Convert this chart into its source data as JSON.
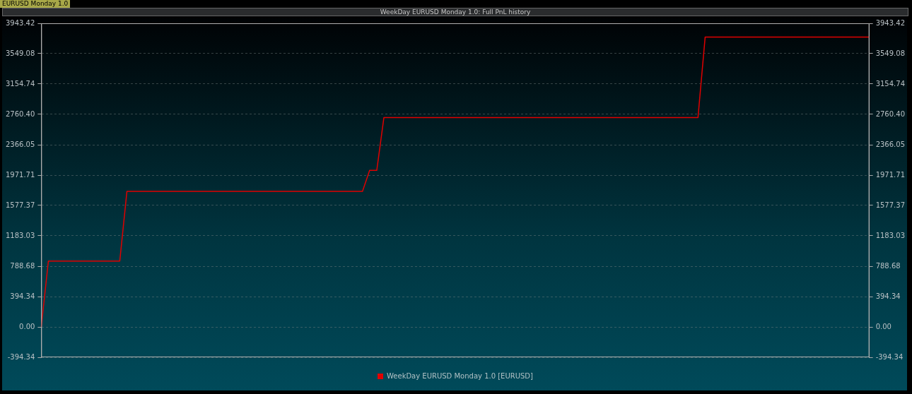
{
  "chart_data": {
    "type": "line",
    "title": "WeekDay EURUSD Monday 1.0: Full PnL history",
    "annotations": [
      "EURUSD Monday 1.0"
    ],
    "categories": [
      null,
      null,
      null,
      null,
      null,
      null,
      null,
      null,
      null,
      null,
      null,
      null,
      null,
      null,
      null,
      null,
      null,
      null,
      null,
      null,
      null,
      null,
      null,
      null,
      null,
      null,
      null,
      null,
      null,
      null,
      null,
      null,
      null,
      null,
      null,
      null,
      null,
      null,
      null,
      null,
      null,
      null,
      null,
      null,
      null,
      null,
      null,
      null,
      null,
      null,
      null,
      null,
      null,
      null,
      null,
      null,
      null,
      null,
      null,
      null,
      null,
      null,
      null,
      null,
      null,
      null,
      null,
      null,
      null,
      null,
      null,
      null,
      null,
      null,
      null,
      null,
      null,
      null,
      null,
      null,
      null,
      null,
      null,
      null,
      null,
      null,
      null,
      null,
      null,
      null,
      null,
      null,
      null,
      null,
      null,
      null,
      null,
      null,
      null,
      null,
      null,
      null,
      null,
      null,
      null,
      null,
      null,
      null,
      null,
      null,
      null,
      null,
      null,
      null,
      null,
      null,
      null
    ],
    "series": [
      {
        "name": "WeekDay EURUSD Monday 1.0 [EURUSD]",
        "color": "#e00000",
        "values": [
          0,
          856,
          856,
          856,
          856,
          856,
          856,
          856,
          856,
          856,
          856,
          856,
          1760,
          1760,
          1760,
          1760,
          1760,
          1760,
          1760,
          1760,
          1760,
          1760,
          1760,
          1760,
          1760,
          1760,
          1760,
          1760,
          1760,
          1760,
          1760,
          1760,
          1760,
          1760,
          1760,
          1760,
          1760,
          1760,
          1760,
          1760,
          1760,
          1760,
          1760,
          1760,
          1760,
          1760,
          2033,
          2033,
          2720,
          2720,
          2720,
          2720,
          2720,
          2720,
          2720,
          2720,
          2720,
          2720,
          2720,
          2720,
          2720,
          2720,
          2720,
          2720,
          2720,
          2720,
          2720,
          2720,
          2720,
          2720,
          2720,
          2720,
          2720,
          2720,
          2720,
          2720,
          2720,
          2720,
          2720,
          2720,
          2720,
          2720,
          2720,
          2720,
          2720,
          2720,
          2720,
          2720,
          2720,
          2720,
          2720,
          2720,
          2720,
          3764,
          3764,
          3764,
          3764,
          3764,
          3764,
          3764,
          3764,
          3764,
          3764,
          3764,
          3764,
          3764,
          3764,
          3764,
          3764,
          3764,
          3764,
          3764,
          3764,
          3764,
          3764,
          3764,
          3764
        ]
      }
    ],
    "ylim": [
      -394.34,
      3943.42
    ],
    "yticks": [
      {
        "value": -394.34,
        "label": "-394.34"
      },
      {
        "value": 0,
        "label": "0.00"
      },
      {
        "value": 394.34,
        "label": "394.34"
      },
      {
        "value": 788.68,
        "label": "788.68"
      },
      {
        "value": 1183.03,
        "label": "1183.03"
      },
      {
        "value": 1577.37,
        "label": "1577.37"
      },
      {
        "value": 1971.71,
        "label": "1971.71"
      },
      {
        "value": 2366.05,
        "label": "2366.05"
      },
      {
        "value": 2760.4,
        "label": "2760.40"
      },
      {
        "value": 3154.74,
        "label": "3154.74"
      },
      {
        "value": 3549.08,
        "label": "3549.08"
      },
      {
        "value": 3943.42,
        "label": "3943.42"
      }
    ],
    "y2lim": [
      -394.34,
      3943.42
    ],
    "y2ticks": [
      {
        "value": -394.34,
        "label": "-394.34"
      },
      {
        "value": 0,
        "label": "0.00"
      },
      {
        "value": 394.34,
        "label": "394.34"
      },
      {
        "value": 788.68,
        "label": "788.68"
      },
      {
        "value": 1183.03,
        "label": "1183.03"
      },
      {
        "value": 1577.37,
        "label": "1577.37"
      },
      {
        "value": 1971.71,
        "label": "1971.71"
      },
      {
        "value": 2366.05,
        "label": "2366.05"
      },
      {
        "value": 2760.4,
        "label": "2760.40"
      },
      {
        "value": 3154.74,
        "label": "3154.74"
      },
      {
        "value": 3549.08,
        "label": "3549.08"
      },
      {
        "value": 3943.42,
        "label": "3943.42"
      }
    ],
    "grid": "y",
    "legend": "bottom",
    "marker": "none",
    "line_style": "solid"
  }
}
